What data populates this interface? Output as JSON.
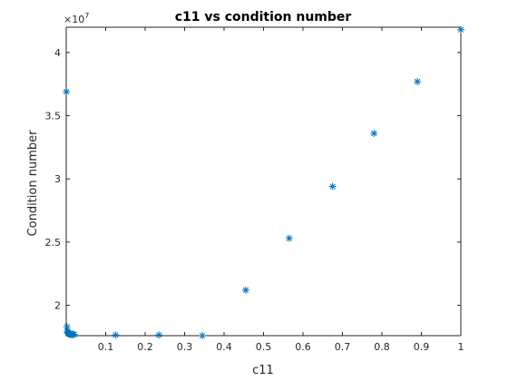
{
  "chart_data": {
    "type": "scatter",
    "title": "c11 vs condition number",
    "xlabel": "c11",
    "ylabel": "Condition number",
    "y_exponent": "10",
    "y_exponent_power": "7",
    "xlim": [
      0,
      1
    ],
    "ylim": [
      17.6,
      42
    ],
    "y_scale_note": "values in units of 10^7",
    "x_ticks": [
      0.1,
      0.2,
      0.3,
      0.4,
      0.5,
      0.6,
      0.7,
      0.8,
      0.9,
      1
    ],
    "x_tick_labels": [
      "0.1",
      "0.2",
      "0.3",
      "0.4",
      "0.5",
      "0.6",
      "0.7",
      "0.8",
      "0.9",
      "1"
    ],
    "y_ticks": [
      20,
      25,
      30,
      35,
      40
    ],
    "y_tick_labels": [
      "2",
      "2.5",
      "3",
      "3.5",
      "4"
    ],
    "marker": "asterisk",
    "color": "#0072BD",
    "grid": false,
    "series": [
      {
        "x": [
          0.0005,
          0.002,
          0.003,
          0.004,
          0.005,
          0.006,
          0.007,
          0.008,
          0.009,
          0.01,
          0.012,
          0.015,
          0.018,
          0.02,
          0.125,
          0.235,
          0.345,
          0.455,
          0.565,
          0.675,
          0.78,
          0.89,
          1.0
        ],
        "y": [
          36.9,
          18.3,
          17.95,
          17.85,
          17.8,
          17.78,
          17.75,
          17.73,
          17.72,
          17.7,
          17.7,
          17.7,
          17.7,
          17.7,
          17.65,
          17.65,
          17.6,
          21.2,
          25.3,
          29.4,
          33.6,
          37.7,
          41.8
        ]
      }
    ]
  }
}
